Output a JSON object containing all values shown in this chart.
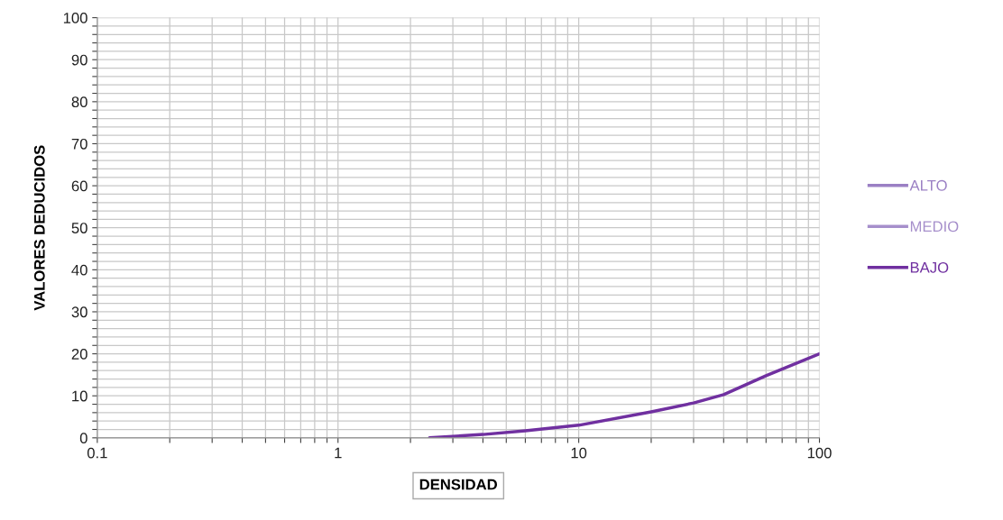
{
  "chart_data": {
    "type": "line",
    "xlabel": "DENSIDAD",
    "ylabel": "VALORES DEDUCIDOS",
    "log": "x",
    "xlim": [
      0.1,
      100
    ],
    "ylim": [
      0,
      100
    ],
    "xticks": [
      {
        "value": 0.1,
        "label": "0.1"
      },
      {
        "value": 0.2,
        "label": null
      },
      {
        "value": 0.3,
        "label": null
      },
      {
        "value": 0.4,
        "label": null
      },
      {
        "value": 0.5,
        "label": null
      },
      {
        "value": 0.6,
        "label": null
      },
      {
        "value": 0.7,
        "label": null
      },
      {
        "value": 0.8,
        "label": null
      },
      {
        "value": 0.9,
        "label": null
      },
      1,
      {
        "value": 2,
        "label": null
      },
      {
        "value": 3,
        "label": null
      },
      {
        "value": 4,
        "label": null
      },
      {
        "value": 5,
        "label": null
      },
      {
        "value": 6,
        "label": null
      },
      {
        "value": 7,
        "label": null
      },
      {
        "value": 8,
        "label": null
      },
      {
        "value": 9,
        "label": null
      },
      10,
      {
        "value": 20,
        "label": null
      },
      {
        "value": 30,
        "label": null
      },
      {
        "value": 40,
        "label": null
      },
      {
        "value": 50,
        "label": null
      },
      {
        "value": 60,
        "label": null
      },
      {
        "value": 70,
        "label": null
      },
      {
        "value": 80,
        "label": null
      },
      {
        "value": 90,
        "label": null
      },
      100
    ],
    "yticks": [
      0,
      {
        "value": 2,
        "label": null
      },
      {
        "value": 4,
        "label": null
      },
      {
        "value": 6,
        "label": null
      },
      {
        "value": 8,
        "label": null
      },
      10,
      {
        "value": 12,
        "label": null
      },
      {
        "value": 14,
        "label": null
      },
      {
        "value": 16,
        "label": null
      },
      {
        "value": 18,
        "label": null
      },
      20,
      {
        "value": 22,
        "label": null
      },
      {
        "value": 24,
        "label": null
      },
      {
        "value": 26,
        "label": null
      },
      {
        "value": 28,
        "label": null
      },
      30,
      {
        "value": 32,
        "label": null
      },
      {
        "value": 34,
        "label": null
      },
      {
        "value": 36,
        "label": null
      },
      {
        "value": 38,
        "label": null
      },
      40,
      {
        "value": 42,
        "label": null
      },
      {
        "value": 44,
        "label": null
      },
      {
        "value": 46,
        "label": null
      },
      {
        "value": 48,
        "label": null
      },
      50,
      {
        "value": 52,
        "label": null
      },
      {
        "value": 54,
        "label": null
      },
      {
        "value": 56,
        "label": null
      },
      {
        "value": 58,
        "label": null
      },
      60,
      {
        "value": 62,
        "label": null
      },
      {
        "value": 64,
        "label": null
      },
      {
        "value": 66,
        "label": null
      },
      {
        "value": 68,
        "label": null
      },
      70,
      {
        "value": 72,
        "label": null
      },
      {
        "value": 74,
        "label": null
      },
      {
        "value": 76,
        "label": null
      },
      {
        "value": 78,
        "label": null
      },
      80,
      {
        "value": 82,
        "label": null
      },
      {
        "value": 84,
        "label": null
      },
      {
        "value": 86,
        "label": null
      },
      {
        "value": 88,
        "label": null
      },
      90,
      {
        "value": 92,
        "label": null
      },
      {
        "value": 94,
        "label": null
      },
      {
        "value": 96,
        "label": null
      },
      {
        "value": 98,
        "label": null
      },
      100
    ],
    "grid": true,
    "legend": "right",
    "marker": "none",
    "line_style": "solid",
    "x": [
      2.4,
      4,
      6,
      10,
      20,
      30,
      40,
      60,
      100
    ],
    "series": [
      {
        "name": "ALTO",
        "color": "#9b80c4",
        "values": [
          null,
          null,
          null,
          null,
          null,
          null,
          null,
          null,
          null
        ]
      },
      {
        "name": "MEDIO",
        "color": "#a68fcb",
        "values": [
          null,
          null,
          null,
          null,
          null,
          null,
          null,
          null,
          null
        ]
      },
      {
        "name": "BAJO",
        "color": "#7030a0",
        "values": [
          0,
          0.8,
          1.7,
          3,
          6.2,
          8.3,
          10.3,
          14.8,
          20
        ]
      }
    ]
  }
}
